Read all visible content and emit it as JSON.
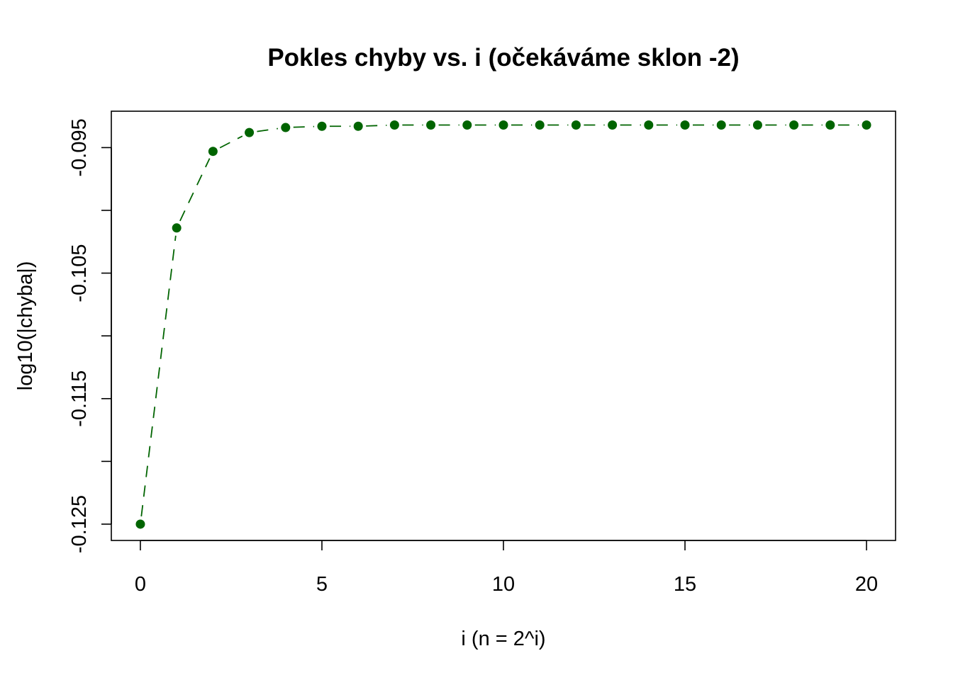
{
  "chart_data": {
    "type": "line",
    "title": "Pokles chyby vs. i (očekáváme sklon -2)",
    "xlabel": "i (n = 2^i)",
    "ylabel": "log10(|chyba|)",
    "xlim": [
      -0.8,
      20.8
    ],
    "ylim": [
      -0.1263,
      -0.0921
    ],
    "x_ticks": [
      0,
      5,
      10,
      15,
      20
    ],
    "x_tick_labels": [
      "0",
      "5",
      "10",
      "15",
      "20"
    ],
    "y_ticks": [
      -0.125,
      -0.12,
      -0.115,
      -0.11,
      -0.105,
      -0.1,
      -0.095
    ],
    "y_tick_labels": [
      "-0.125",
      "",
      "-0.115",
      "",
      "-0.105",
      "",
      "-0.095"
    ],
    "grid": false,
    "series": [
      {
        "color": "#006400",
        "line_style": "dashed",
        "marker": "filled-circle",
        "x": [
          0,
          1,
          2,
          3,
          4,
          5,
          6,
          7,
          8,
          9,
          10,
          11,
          12,
          13,
          14,
          15,
          16,
          17,
          18,
          19,
          20
        ],
        "y": [
          -0.125,
          -0.1014,
          -0.0953,
          -0.0938,
          -0.0934,
          -0.0933,
          -0.0933,
          -0.0932,
          -0.0932,
          -0.0932,
          -0.0932,
          -0.0932,
          -0.0932,
          -0.0932,
          -0.0932,
          -0.0932,
          -0.0932,
          -0.0932,
          -0.0932,
          -0.0932,
          -0.0932
        ]
      }
    ]
  }
}
